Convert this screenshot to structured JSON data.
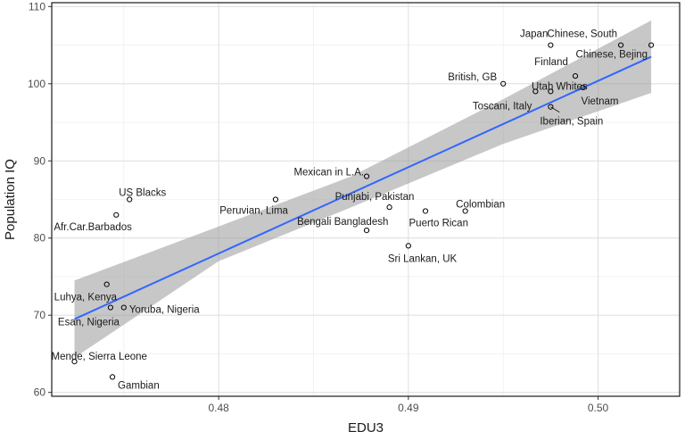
{
  "chart_data": {
    "type": "scatter",
    "xlabel": "EDU3",
    "ylabel": "Population IQ",
    "xlim": [
      0.4712,
      0.5043
    ],
    "ylim": [
      59.5,
      110.5
    ],
    "x_ticks": [
      0.48,
      0.49,
      0.5
    ],
    "x_tick_labels": [
      "0.48",
      "0.49",
      "0.50"
    ],
    "y_ticks": [
      60,
      70,
      80,
      90,
      100,
      110
    ],
    "y_tick_labels": [
      "60",
      "70",
      "80",
      "90",
      "100",
      "110"
    ],
    "grid": true,
    "points": [
      {
        "label": "Japan",
        "x": 0.4975,
        "y": 105
      },
      {
        "label": "Chinese, South",
        "x": 0.5012,
        "y": 105
      },
      {
        "label": "Chinese, Bejing",
        "x": 0.5028,
        "y": 105
      },
      {
        "label": "Finland",
        "x": 0.4988,
        "y": 101
      },
      {
        "label": "British, GB",
        "x": 0.495,
        "y": 100
      },
      {
        "label": "Utah Whites",
        "x": 0.4975,
        "y": 99
      },
      {
        "label": "Toscani, Italy",
        "x": 0.4967,
        "y": 99
      },
      {
        "label": "Vietnam",
        "x": 0.4992,
        "y": 99.5
      },
      {
        "label": "Iberian, Spain",
        "x": 0.4975,
        "y": 97
      },
      {
        "label": "Mexican in L.A.",
        "x": 0.4878,
        "y": 88
      },
      {
        "label": "Peruvian, Lima",
        "x": 0.483,
        "y": 85
      },
      {
        "label": "Punjabi, Pakistan",
        "x": 0.489,
        "y": 84
      },
      {
        "label": "Colombian",
        "x": 0.493,
        "y": 83.5
      },
      {
        "label": "Puerto Rican",
        "x": 0.4909,
        "y": 83.5
      },
      {
        "label": "Bengali Bangladesh",
        "x": 0.4878,
        "y": 81
      },
      {
        "label": "Sri Lankan, UK",
        "x": 0.49,
        "y": 79
      },
      {
        "label": "US Blacks",
        "x": 0.4753,
        "y": 85
      },
      {
        "label": "Afr.Car.Barbados",
        "x": 0.4746,
        "y": 83
      },
      {
        "label": "Luhya, Kenya",
        "x": 0.4741,
        "y": 74
      },
      {
        "label": "Esan, Nigeria",
        "x": 0.4743,
        "y": 71
      },
      {
        "label": "Yoruba, Nigeria",
        "x": 0.475,
        "y": 71
      },
      {
        "label": "Mende, Sierra Leone",
        "x": 0.4724,
        "y": 64
      },
      {
        "label": "Gambian",
        "x": 0.4744,
        "y": 62
      }
    ],
    "fit_line": {
      "x": [
        0.4724,
        0.5028
      ],
      "y": [
        69.5,
        103.5
      ]
    },
    "confidence_band": {
      "x": [
        0.4724,
        0.48,
        0.487,
        0.495,
        0.5028
      ],
      "upper": [
        74.5,
        81.5,
        88.0,
        98.0,
        108.2
      ],
      "lower": [
        64.5,
        77.0,
        84.0,
        92.2,
        98.8
      ]
    },
    "colors": {
      "line": "#3366ff",
      "band": "#999999",
      "points": "#000000",
      "grid": "#ebebeb",
      "frame": "#1a1a1a"
    }
  }
}
